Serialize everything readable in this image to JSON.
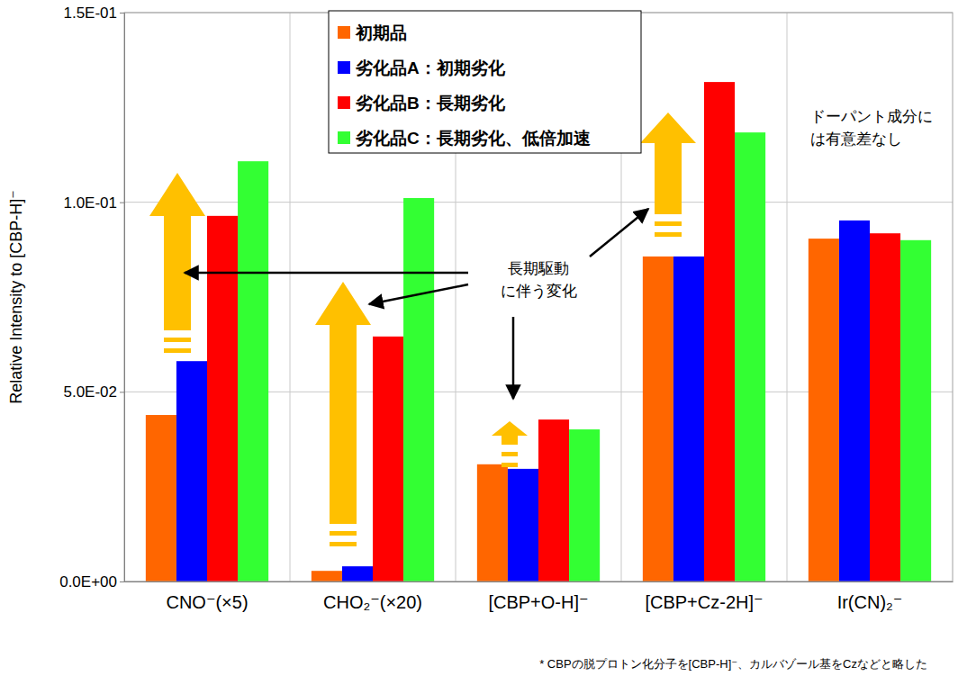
{
  "chart_data": {
    "type": "bar",
    "y_label": "Relative Intensity to [CBP-H]⁻",
    "categories": [
      "CNO⁻(×5)",
      "CHO₂⁻(×20)",
      "[CBP+O-H]⁻",
      "[CBP+Cz-2H]⁻",
      "Ir(CN)₂⁻"
    ],
    "series": [
      {
        "name": "初期品",
        "color": "#ff6600",
        "values": [
          0.0439,
          0.0028,
          0.0309,
          0.0857,
          0.0904
        ]
      },
      {
        "name": "劣化品A：初期劣化",
        "color": "#0000ff",
        "values": [
          0.0581,
          0.004,
          0.0297,
          0.0857,
          0.0952
        ]
      },
      {
        "name": "劣化品B：長期劣化",
        "color": "#ff0000",
        "values": [
          0.0964,
          0.0646,
          0.0427,
          0.1317,
          0.0918
        ]
      },
      {
        "name": "劣化品C：長期劣化、低倍加速",
        "color": "#33ff33",
        "values": [
          0.1108,
          0.1011,
          0.0401,
          0.1184,
          0.09
        ]
      }
    ],
    "ylim": [
      0,
      0.15
    ],
    "yticks": [
      {
        "value": 0,
        "label": "0.0E+00"
      },
      {
        "value": 0.05,
        "label": "5.0E-02"
      },
      {
        "value": 0.1,
        "label": "1.0E-01"
      },
      {
        "value": 0.15,
        "label": "1.5E-01"
      }
    ],
    "grid": true,
    "legend": "top",
    "annotations": [
      {
        "lines": [
          "長期駆動",
          "に伴う変化"
        ]
      },
      {
        "lines": [
          "ドーパント成分に",
          "は有意差なし"
        ]
      }
    ],
    "footnote": "* CBPの脱プロトン化分子を[CBP-H]⁻、カルバゾール基をCzなどと略した"
  }
}
